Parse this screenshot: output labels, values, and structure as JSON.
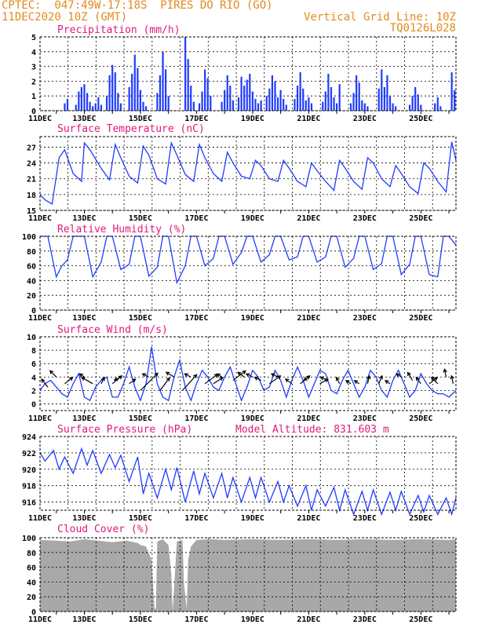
{
  "header": {
    "line1": "CPTEC:  047:49W-17:18S  PIRES DO RIO (GO)",
    "line2": "11DEC2020 10Z (GMT)",
    "grid_note": "Vertical Grid Line: 10Z",
    "code": "TQ0126L028",
    "model_altitude": "Model Altitude: 831.603 m"
  },
  "x_axis": {
    "labels": [
      "11DEC",
      "13DEC",
      "15DEC",
      "17DEC",
      "19DEC",
      "21DEC",
      "23DEC",
      "25DEC"
    ],
    "day_range": [
      11.42,
      26.25
    ]
  },
  "chart_data": [
    {
      "type": "bar",
      "title": "Precipitation (mm/h)",
      "ylim": [
        0,
        5
      ],
      "yticks": [
        "0",
        "1",
        "2",
        "3",
        "4",
        "5"
      ],
      "grid": true,
      "x_days": [
        12.3,
        12.4,
        12.7,
        12.8,
        12.9,
        13.0,
        13.1,
        13.2,
        13.3,
        13.4,
        13.5,
        13.6,
        13.8,
        13.9,
        14.0,
        14.1,
        14.2,
        14.3,
        14.6,
        14.7,
        14.8,
        14.9,
        15.0,
        15.1,
        15.2,
        15.6,
        15.7,
        15.8,
        15.9,
        16.0,
        16.6,
        16.7,
        16.8,
        16.9,
        17.1,
        17.2,
        17.3,
        17.4,
        17.5,
        17.9,
        18.0,
        18.1,
        18.2,
        18.3,
        18.5,
        18.6,
        18.7,
        18.8,
        18.9,
        19.0,
        19.1,
        19.2,
        19.3,
        19.5,
        19.6,
        19.7,
        19.8,
        19.9,
        20.0,
        20.1,
        20.2,
        20.5,
        20.6,
        20.7,
        20.8,
        20.9,
        21.0,
        21.1,
        21.5,
        21.6,
        21.7,
        21.8,
        21.9,
        22.0,
        22.1,
        22.5,
        22.6,
        22.7,
        22.8,
        22.9,
        23.0,
        23.1,
        23.5,
        23.6,
        23.7,
        23.8,
        23.9,
        24.0,
        24.1,
        24.6,
        24.7,
        24.8,
        24.9,
        25.0,
        25.5,
        25.6,
        25.7,
        26.1,
        26.2
      ],
      "values": [
        0.5,
        0.8,
        0.4,
        1.3,
        1.6,
        1.8,
        1.2,
        0.6,
        0.3,
        0.5,
        0.9,
        0.4,
        1.0,
        2.4,
        3.1,
        2.6,
        1.2,
        0.5,
        1.6,
        2.5,
        3.8,
        2.9,
        1.4,
        0.6,
        0.3,
        1.2,
        2.4,
        4.0,
        2.8,
        1.0,
        5.0,
        3.5,
        1.7,
        0.6,
        0.5,
        1.3,
        2.8,
        2.2,
        1.0,
        0.6,
        1.4,
        2.4,
        1.7,
        0.7,
        0.9,
        2.3,
        1.7,
        2.1,
        2.5,
        1.3,
        0.8,
        0.5,
        0.7,
        1.0,
        1.5,
        2.4,
        2.0,
        0.9,
        1.4,
        0.8,
        0.4,
        0.8,
        1.7,
        2.6,
        1.5,
        0.7,
        0.9,
        0.5,
        0.6,
        1.3,
        2.5,
        1.6,
        0.9,
        0.5,
        1.8,
        0.5,
        1.2,
        2.4,
        1.9,
        0.7,
        0.5,
        0.3,
        1.5,
        2.8,
        1.6,
        2.4,
        1.0,
        0.5,
        0.3,
        0.4,
        1.0,
        1.6,
        1.1,
        0.4,
        0.5,
        0.9,
        0.3,
        2.6,
        1.4
      ]
    },
    {
      "type": "line",
      "title": "Surface Temperature (nC)",
      "ylim": [
        15,
        29
      ],
      "yticks": [
        "15",
        "18",
        "21",
        "24",
        "27"
      ],
      "grid": true,
      "x_days": [
        11.42,
        11.6,
        11.85,
        12.1,
        12.3,
        12.6,
        12.9,
        13.0,
        13.2,
        13.6,
        13.9,
        14.1,
        14.3,
        14.6,
        14.9,
        15.1,
        15.3,
        15.6,
        15.9,
        16.1,
        16.3,
        16.6,
        16.9,
        17.1,
        17.3,
        17.6,
        17.9,
        18.1,
        18.3,
        18.6,
        18.9,
        19.1,
        19.3,
        19.6,
        19.9,
        20.1,
        20.3,
        20.6,
        20.9,
        21.1,
        21.3,
        21.6,
        21.9,
        22.1,
        22.3,
        22.6,
        22.9,
        23.1,
        23.3,
        23.6,
        23.9,
        24.1,
        24.3,
        24.6,
        24.9,
        25.1,
        25.3,
        25.6,
        25.9,
        26.1,
        26.25
      ],
      "series": [
        {
          "values": [
            18,
            17,
            16.2,
            25,
            26.5,
            22,
            20.5,
            27.8,
            26.5,
            23,
            20.8,
            27.5,
            25,
            21.5,
            20.2,
            27.2,
            25.5,
            21,
            20,
            27.8,
            25.5,
            21.8,
            20.5,
            27.5,
            25,
            22,
            20.5,
            26,
            24,
            21.5,
            21,
            24.5,
            23.5,
            21,
            20.5,
            24.5,
            23,
            20.5,
            19.5,
            24,
            22.5,
            20.5,
            18.8,
            24.5,
            23,
            20.5,
            19,
            25,
            24,
            21,
            19.5,
            23.5,
            22,
            19.5,
            18.2,
            24,
            23,
            20.5,
            18.5,
            28,
            24.5
          ]
        }
      ]
    },
    {
      "type": "line",
      "title": "Relative Humidity (%)",
      "ylim": [
        0,
        100
      ],
      "yticks": [
        "0",
        "20",
        "40",
        "60",
        "80",
        "100"
      ],
      "grid": true,
      "x_days": [
        11.42,
        11.55,
        11.7,
        12.0,
        12.2,
        12.4,
        12.6,
        12.9,
        13.0,
        13.3,
        13.6,
        13.8,
        14.0,
        14.3,
        14.6,
        14.8,
        15.0,
        15.3,
        15.6,
        15.8,
        16.0,
        16.3,
        16.6,
        16.8,
        17.0,
        17.3,
        17.6,
        17.8,
        18.0,
        18.3,
        18.6,
        18.8,
        19.0,
        19.3,
        19.6,
        19.8,
        20.0,
        20.3,
        20.6,
        20.8,
        21.0,
        21.3,
        21.6,
        21.8,
        22.0,
        22.3,
        22.6,
        22.8,
        23.0,
        23.3,
        23.6,
        23.8,
        24.0,
        24.3,
        24.6,
        24.8,
        25.0,
        25.3,
        25.6,
        25.8,
        26.0,
        26.25
      ],
      "series": [
        {
          "values": [
            100,
            100,
            100,
            45,
            60,
            68,
            100,
            100,
            100,
            45,
            65,
            100,
            100,
            55,
            62,
            100,
            100,
            46,
            58,
            100,
            100,
            37,
            60,
            100,
            100,
            60,
            70,
            100,
            100,
            62,
            78,
            100,
            100,
            65,
            75,
            100,
            100,
            68,
            72,
            100,
            100,
            65,
            72,
            100,
            100,
            58,
            70,
            100,
            100,
            55,
            63,
            100,
            100,
            48,
            62,
            100,
            100,
            48,
            45,
            100,
            100,
            88
          ]
        }
      ]
    },
    {
      "type": "line",
      "title": "Surface Wind (m/s)",
      "ylim": [
        -1,
        10
      ],
      "yticks": [
        "0",
        "2",
        "4",
        "6",
        "8",
        "10"
      ],
      "grid": true,
      "x_days": [
        11.42,
        11.6,
        11.8,
        12.0,
        12.2,
        12.4,
        12.6,
        12.8,
        13.0,
        13.2,
        13.4,
        13.6,
        13.8,
        14.0,
        14.2,
        14.4,
        14.6,
        14.8,
        15.0,
        15.2,
        15.4,
        15.6,
        15.8,
        16.0,
        16.2,
        16.4,
        16.6,
        16.8,
        17.0,
        17.2,
        17.4,
        17.6,
        17.8,
        18.0,
        18.2,
        18.4,
        18.6,
        18.8,
        19.0,
        19.2,
        19.4,
        19.6,
        19.8,
        20.0,
        20.2,
        20.4,
        20.6,
        20.8,
        21.0,
        21.2,
        21.4,
        21.6,
        21.8,
        22.0,
        22.2,
        22.4,
        22.6,
        22.8,
        23.0,
        23.2,
        23.4,
        23.6,
        23.8,
        24.0,
        24.2,
        24.4,
        24.6,
        24.8,
        25.0,
        25.2,
        25.4,
        25.6,
        25.8,
        26.0,
        26.25
      ],
      "series": [
        {
          "values": [
            2,
            3,
            3.5,
            2.5,
            1.5,
            1,
            3,
            4.5,
            1,
            0.5,
            2.5,
            3.5,
            4,
            1,
            1,
            3,
            5.5,
            2.5,
            0.5,
            3,
            8.5,
            3,
            1,
            0.5,
            4,
            6.5,
            2.5,
            0.5,
            3,
            5,
            4,
            2.5,
            2,
            4,
            5.5,
            3,
            0.5,
            2.5,
            5,
            4,
            2,
            2.5,
            5,
            3.5,
            1,
            3.5,
            5.5,
            3.5,
            1,
            3,
            5,
            4.5,
            2,
            1.5,
            3.5,
            5,
            3,
            1,
            2.5,
            5,
            4,
            2,
            1,
            3.5,
            5,
            3,
            1,
            2,
            4.5,
            3,
            2,
            1.5,
            1.5,
            1,
            2
          ]
        }
      ],
      "vectors": [
        {
          "x": 11.7,
          "y": 2.5,
          "dx": -8,
          "dy": -10
        },
        {
          "x": 12.0,
          "y": 4.0,
          "dx": -8,
          "dy": -8
        },
        {
          "x": 12.3,
          "y": 3.0,
          "dx": 10,
          "dy": -8
        },
        {
          "x": 13.0,
          "y": 4.0,
          "dx": -6,
          "dy": -4
        },
        {
          "x": 13.3,
          "y": 3.0,
          "dx": -14,
          "dy": -8
        },
        {
          "x": 13.6,
          "y": 3.0,
          "dx": 4,
          "dy": -8
        },
        {
          "x": 14.0,
          "y": 3.0,
          "dx": 12,
          "dy": -10
        },
        {
          "x": 14.3,
          "y": 4.0,
          "dx": -8,
          "dy": 4
        },
        {
          "x": 14.6,
          "y": 3.0,
          "dx": 8,
          "dy": -6
        },
        {
          "x": 15.0,
          "y": 2.0,
          "dx": 22,
          "dy": -22
        },
        {
          "x": 15.3,
          "y": 4.0,
          "dx": -8,
          "dy": -4
        },
        {
          "x": 15.7,
          "y": 2.0,
          "dx": 12,
          "dy": -16
        },
        {
          "x": 16.2,
          "y": 4.0,
          "dx": -10,
          "dy": -6
        },
        {
          "x": 16.5,
          "y": 2.0,
          "dx": 18,
          "dy": -20
        },
        {
          "x": 16.8,
          "y": 4.0,
          "dx": -8,
          "dy": -4
        },
        {
          "x": 17.3,
          "y": 3.0,
          "dx": 16,
          "dy": -12
        },
        {
          "x": 17.6,
          "y": 3.0,
          "dx": 12,
          "dy": -8
        },
        {
          "x": 17.9,
          "y": 4.0,
          "dx": -6,
          "dy": -4
        },
        {
          "x": 18.3,
          "y": 3.5,
          "dx": 16,
          "dy": -12
        },
        {
          "x": 18.7,
          "y": 4.0,
          "dx": -8,
          "dy": -6
        },
        {
          "x": 19.0,
          "y": 4.0,
          "dx": -8,
          "dy": -4
        },
        {
          "x": 19.3,
          "y": 3.5,
          "dx": -8,
          "dy": -4
        },
        {
          "x": 19.6,
          "y": 3.0,
          "dx": 14,
          "dy": -10
        },
        {
          "x": 19.9,
          "y": 4.0,
          "dx": -8,
          "dy": -4
        },
        {
          "x": 20.4,
          "y": 3.0,
          "dx": -8,
          "dy": -6
        },
        {
          "x": 20.7,
          "y": 3.0,
          "dx": 12,
          "dy": -10
        },
        {
          "x": 21.0,
          "y": 4.0,
          "dx": -6,
          "dy": 4
        },
        {
          "x": 21.4,
          "y": 3.0,
          "dx": 10,
          "dy": -6
        },
        {
          "x": 21.7,
          "y": 3.5,
          "dx": -10,
          "dy": -4
        },
        {
          "x": 22.1,
          "y": 3.0,
          "dx": -4,
          "dy": -8
        },
        {
          "x": 22.5,
          "y": 3.0,
          "dx": -6,
          "dy": -4
        },
        {
          "x": 22.8,
          "y": 3.0,
          "dx": -6,
          "dy": -4
        },
        {
          "x": 23.1,
          "y": 3.0,
          "dx": 2,
          "dy": -10
        },
        {
          "x": 23.5,
          "y": 3.0,
          "dx": 4,
          "dy": -10
        },
        {
          "x": 23.9,
          "y": 3.0,
          "dx": -6,
          "dy": -4
        },
        {
          "x": 24.3,
          "y": 4.0,
          "dx": -6,
          "dy": -4
        },
        {
          "x": 24.7,
          "y": 3.5,
          "dx": -6,
          "dy": -10
        },
        {
          "x": 25.0,
          "y": 3.0,
          "dx": -6,
          "dy": -8
        },
        {
          "x": 25.3,
          "y": 3.0,
          "dx": 10,
          "dy": -8
        },
        {
          "x": 25.6,
          "y": 3.0,
          "dx": -8,
          "dy": -8
        },
        {
          "x": 25.9,
          "y": 4.0,
          "dx": -2,
          "dy": -10
        },
        {
          "x": 26.15,
          "y": 3.0,
          "dx": -2,
          "dy": -10
        }
      ]
    },
    {
      "type": "line",
      "title": "Surface Pressure (hPa)",
      "ylim": [
        915,
        924
      ],
      "yticks": [
        "916",
        "918",
        "920",
        "922",
        "924"
      ],
      "grid": true,
      "x_days": [
        11.42,
        11.6,
        11.9,
        12.1,
        12.3,
        12.6,
        12.9,
        13.1,
        13.3,
        13.6,
        13.9,
        14.1,
        14.3,
        14.6,
        14.9,
        15.1,
        15.3,
        15.6,
        15.9,
        16.1,
        16.3,
        16.6,
        16.9,
        17.1,
        17.3,
        17.6,
        17.9,
        18.1,
        18.3,
        18.6,
        18.9,
        19.1,
        19.3,
        19.6,
        19.9,
        20.1,
        20.3,
        20.6,
        20.9,
        21.1,
        21.3,
        21.6,
        21.9,
        22.1,
        22.3,
        22.6,
        22.9,
        23.1,
        23.3,
        23.6,
        23.9,
        24.1,
        24.3,
        24.6,
        24.9,
        25.1,
        25.3,
        25.6,
        25.9,
        26.1,
        26.25
      ],
      "series": [
        {
          "values": [
            922,
            921,
            922.3,
            920,
            921.5,
            919.5,
            922.5,
            920.5,
            922.3,
            919.5,
            921.8,
            920.2,
            921.7,
            918.5,
            921.5,
            917,
            919.5,
            916.5,
            920,
            917.5,
            920.2,
            916,
            919.8,
            917,
            919.5,
            916.5,
            919.5,
            916.5,
            919,
            916,
            919,
            916.5,
            919,
            916,
            918.5,
            916,
            918,
            915.5,
            918,
            915,
            917.5,
            915.5,
            917.8,
            915,
            917.5,
            914.5,
            917.3,
            915,
            917.5,
            914.5,
            917.2,
            915,
            917.3,
            914.5,
            916.8,
            914.8,
            916.8,
            914.5,
            916.5,
            914.5,
            916.5
          ]
        }
      ]
    },
    {
      "type": "area",
      "title": "Cloud Cover (%)",
      "ylim": [
        0,
        100
      ],
      "yticks": [
        "0",
        "20",
        "40",
        "60",
        "80",
        "100"
      ],
      "grid": true,
      "x_days": [
        11.42,
        12.0,
        12.5,
        13.0,
        13.5,
        14.0,
        14.5,
        14.9,
        15.0,
        15.2,
        15.4,
        15.5,
        15.55,
        15.6,
        15.8,
        16.0,
        16.1,
        16.15,
        16.3,
        16.5,
        16.55,
        16.65,
        16.7,
        16.8,
        17.0,
        17.5,
        18.0,
        19.0,
        20.0,
        21.0,
        22.0,
        23.0,
        24.0,
        25.0,
        26.0,
        26.25
      ],
      "values": [
        97,
        96,
        95,
        98,
        96,
        94,
        96,
        93,
        90,
        88,
        70,
        5,
        3,
        95,
        98,
        90,
        50,
        0,
        95,
        97,
        40,
        3,
        70,
        88,
        97,
        98,
        97,
        98,
        97,
        98,
        97,
        98,
        97,
        98,
        97,
        98
      ],
      "color": "#a8a8a8"
    }
  ]
}
